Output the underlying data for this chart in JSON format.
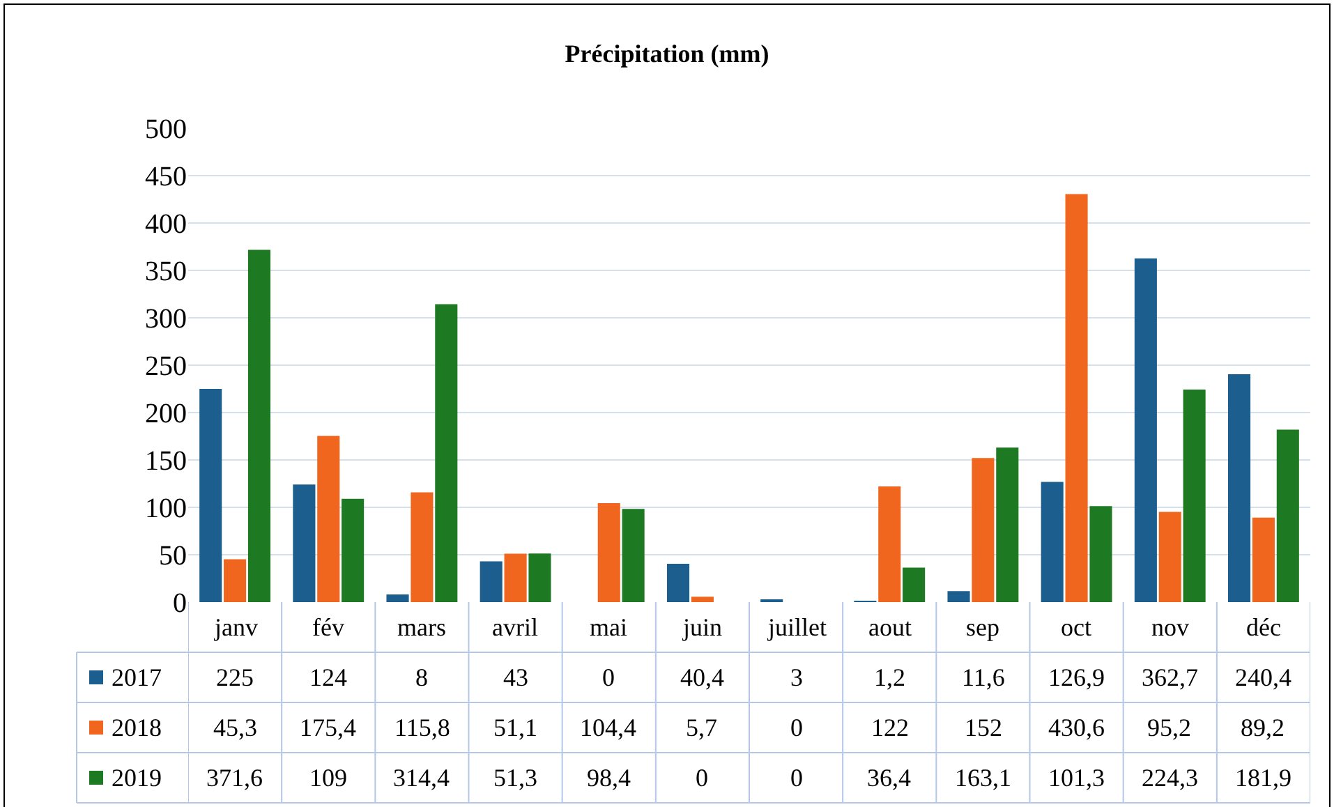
{
  "chart_data": {
    "type": "bar",
    "title": "Précipitation (mm)",
    "categories": [
      "janv",
      "fév",
      "mars",
      "avril",
      "mai",
      "juin",
      "juillet",
      "aout",
      "sep",
      "oct",
      "nov",
      "déc"
    ],
    "series": [
      {
        "name": "2017",
        "color": "#1c5f8e",
        "values": [
          225,
          124,
          8,
          43,
          0,
          40.4,
          3,
          1.2,
          11.6,
          126.9,
          362.7,
          240.4
        ],
        "value_labels": [
          "225",
          "124",
          "8",
          "43",
          "0",
          "40,4",
          "3",
          "1,2",
          "11,6",
          "126,9",
          "362,7",
          "240,4"
        ]
      },
      {
        "name": "2018",
        "color": "#f0661e",
        "values": [
          45.3,
          175.4,
          115.8,
          51.1,
          104.4,
          5.7,
          0,
          122,
          152,
          430.6,
          95.2,
          89.2
        ],
        "value_labels": [
          "45,3",
          "175,4",
          "115,8",
          "51,1",
          "104,4",
          "5,7",
          "0",
          "122",
          "152",
          "430,6",
          "95,2",
          "89,2"
        ]
      },
      {
        "name": "2019",
        "color": "#1e7a22",
        "values": [
          371.6,
          109,
          314.4,
          51.3,
          98.4,
          0,
          0,
          36.4,
          163.1,
          101.3,
          224.3,
          181.9
        ],
        "value_labels": [
          "371,6",
          "109",
          "314,4",
          "51,3",
          "98,4",
          "0",
          "0",
          "36,4",
          "163,1",
          "101,3",
          "224,3",
          "181,9"
        ]
      }
    ],
    "ylim": [
      0,
      500
    ],
    "yticks": [
      0,
      50,
      100,
      150,
      200,
      250,
      300,
      350,
      400,
      450,
      500
    ],
    "grid": "y",
    "legend": "bottom left"
  }
}
